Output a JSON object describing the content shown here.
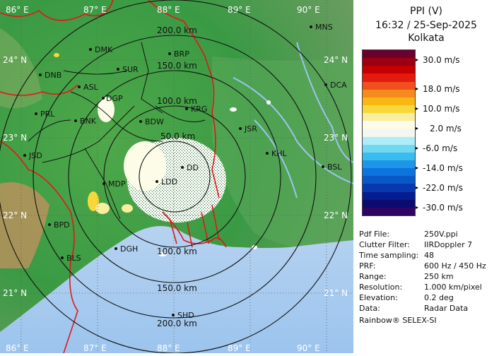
{
  "header": {
    "product": "PPI (V)",
    "datetime": "16:32 / 25-Sep-2025",
    "station": "Kolkata"
  },
  "colorbar": {
    "colors": [
      "#6b0030",
      "#9a0010",
      "#c40000",
      "#e21a10",
      "#f0501c",
      "#f58a1e",
      "#f7b814",
      "#f8d838",
      "#f9eda0",
      "#fdfce8",
      "#f4f6f0",
      "#b0ecf8",
      "#72d8f2",
      "#3bbcee",
      "#1c96e8",
      "#0c74dc",
      "#0a58c8",
      "#0838b0",
      "#081c92",
      "#0c0c70",
      "#300464"
    ],
    "labels": [
      {
        "text": "30.0 m/s",
        "level": 0
      },
      {
        "text": "18.0 m/s",
        "level": 1
      },
      {
        "text": "10.0 m/s",
        "level": 2
      },
      {
        "text": "2.0 m/s",
        "level": 3
      },
      {
        "text": "-6.0 m/s",
        "level": 4
      },
      {
        "text": "-14.0 m/s",
        "level": 5
      },
      {
        "text": "-22.0 m/s",
        "level": 6
      },
      {
        "text": "-30.0 m/s",
        "level": 7
      }
    ]
  },
  "info": [
    {
      "key": "Pdf File:",
      "value": "250V.ppi"
    },
    {
      "key": "Clutter Filter:",
      "value": "IIRDoppler 7"
    },
    {
      "key": "Time sampling:",
      "value": "48"
    },
    {
      "key": "PRF:",
      "value": "600 Hz / 450 Hz"
    },
    {
      "key": "Range:",
      "value": "250 km"
    },
    {
      "key": "Resolution:",
      "value": "1.000 km/pixel"
    },
    {
      "key": "Elevation:",
      "value": "0.2 deg"
    },
    {
      "key": "Data:",
      "value": "Radar Data"
    }
  ],
  "footer": "Rainbow® SELEX-SI",
  "map": {
    "lon_labels": [
      "86° E",
      "87° E",
      "88° E",
      "89° E",
      "90° E"
    ],
    "lat_labels": [
      "24° N",
      "23° N",
      "22° N",
      "21° N"
    ],
    "range_labels": [
      "50.0 km",
      "100.0 km",
      "150.0 km",
      "200.0 km"
    ],
    "cities": [
      {
        "name": "MNS"
      },
      {
        "name": "DMK"
      },
      {
        "name": "BRP"
      },
      {
        "name": "DNB"
      },
      {
        "name": "SUR"
      },
      {
        "name": "DCA"
      },
      {
        "name": "ASL"
      },
      {
        "name": "DGP"
      },
      {
        "name": "KRG"
      },
      {
        "name": "PRL"
      },
      {
        "name": "BNK"
      },
      {
        "name": "BDW"
      },
      {
        "name": "JSR"
      },
      {
        "name": "KHL"
      },
      {
        "name": "JSD"
      },
      {
        "name": "DD"
      },
      {
        "name": "BSL"
      },
      {
        "name": "MDP"
      },
      {
        "name": "LDD"
      },
      {
        "name": "BPD"
      },
      {
        "name": "DGH"
      },
      {
        "name": "BLS"
      },
      {
        "name": "SHD"
      }
    ]
  }
}
